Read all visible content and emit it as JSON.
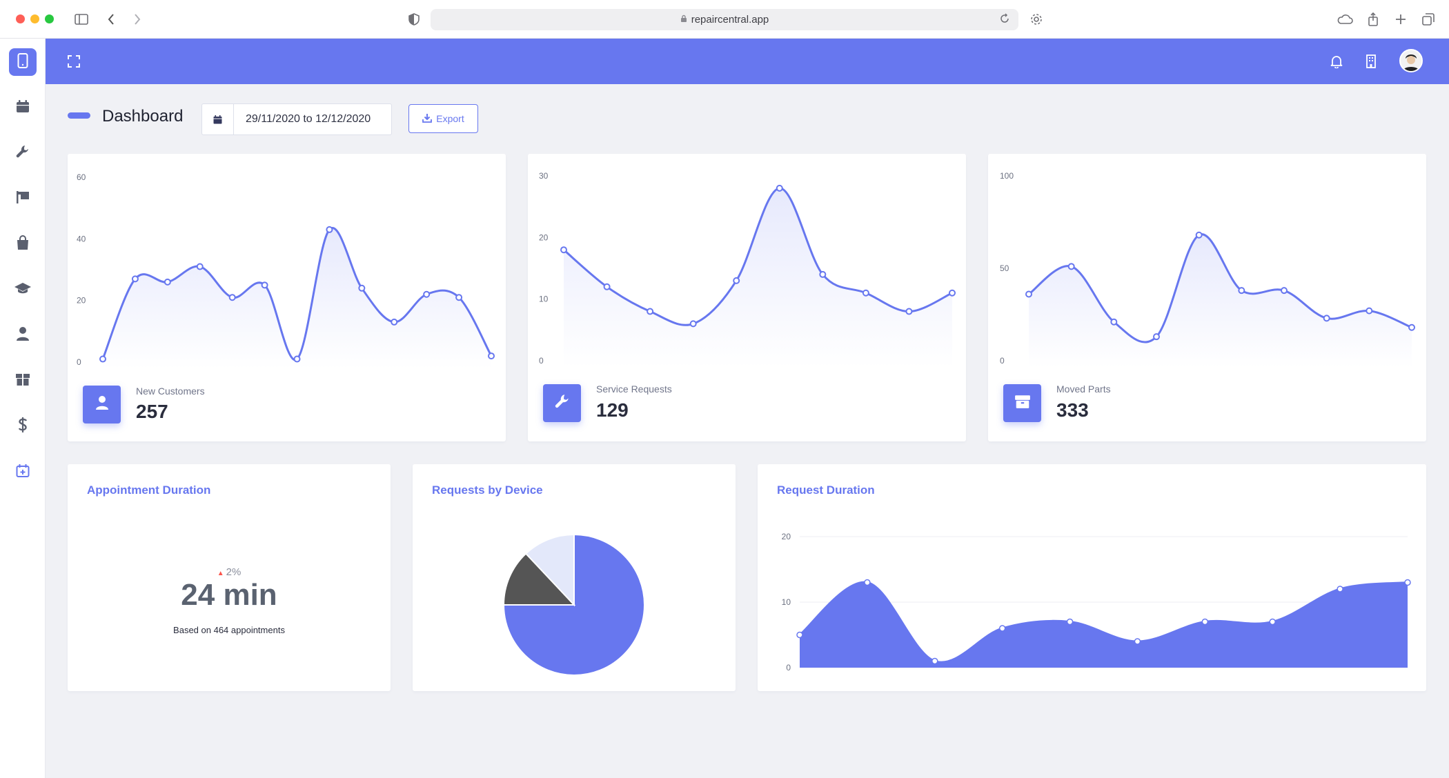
{
  "browser": {
    "url": "repaircentral.app"
  },
  "sidebar": {
    "items": [
      {
        "icon": "phone-icon",
        "name": "sidebar-item-devices",
        "active": true
      },
      {
        "icon": "calendar-icon",
        "name": "sidebar-item-calendar"
      },
      {
        "icon": "wrench-icon",
        "name": "sidebar-item-repairs"
      },
      {
        "icon": "flag-icon",
        "name": "sidebar-item-locations"
      },
      {
        "icon": "bag-icon",
        "name": "sidebar-item-shop"
      },
      {
        "icon": "graduation-cap-icon",
        "name": "sidebar-item-training"
      },
      {
        "icon": "user-icon",
        "name": "sidebar-item-users"
      },
      {
        "icon": "box-icon",
        "name": "sidebar-item-parts"
      },
      {
        "icon": "dollar-icon",
        "name": "sidebar-item-billing"
      },
      {
        "icon": "calendar-plus-icon",
        "name": "sidebar-item-new-appointment"
      }
    ]
  },
  "header": {
    "title": "Dashboard",
    "date_range": "29/11/2020 to 12/12/2020",
    "export_label": "Export"
  },
  "stats": [
    {
      "label": "New Customers",
      "value": "257",
      "icon": "user-icon"
    },
    {
      "label": "Service Requests",
      "value": "129",
      "icon": "wrench-icon"
    },
    {
      "label": "Moved Parts",
      "value": "333",
      "icon": "box-icon"
    }
  ],
  "appointment": {
    "title": "Appointment Duration",
    "change": "2%",
    "value": "24 min",
    "note": "Based on 464 appointments"
  },
  "requests_by_device": {
    "title": "Requests by Device"
  },
  "request_duration": {
    "title": "Request Duration"
  },
  "colors": {
    "primary": "#6777ef",
    "pie_dark": "#555555",
    "pie_light": "#e3e8fa",
    "change_up": "#fc544b"
  },
  "chart_data": [
    {
      "type": "area",
      "series_label": "New Customers",
      "x": [
        1,
        2,
        3,
        4,
        5,
        6,
        7,
        8,
        9,
        10,
        11,
        12,
        13
      ],
      "values": [
        1,
        27,
        26,
        31,
        21,
        25,
        1,
        43,
        24,
        13,
        22,
        21,
        2
      ],
      "ylim": [
        0,
        60
      ],
      "yticks": [
        0,
        20,
        40,
        60
      ]
    },
    {
      "type": "area",
      "series_label": "Service Requests",
      "x": [
        1,
        2,
        3,
        4,
        5,
        6,
        7,
        8,
        9,
        10
      ],
      "values": [
        18,
        12,
        8,
        6,
        13,
        28,
        14,
        11,
        8,
        11
      ],
      "ylim": [
        0,
        30
      ],
      "yticks": [
        0,
        10,
        20,
        30
      ]
    },
    {
      "type": "area",
      "series_label": "Moved Parts",
      "x": [
        1,
        2,
        3,
        4,
        5,
        6,
        7,
        8,
        9,
        10
      ],
      "values": [
        36,
        51,
        21,
        13,
        68,
        38,
        38,
        23,
        27,
        18
      ],
      "ylim": [
        0,
        100
      ],
      "yticks": [
        0,
        50,
        100
      ]
    },
    {
      "type": "pie",
      "title": "Requests by Device",
      "values": [
        75,
        13,
        12
      ],
      "colors": [
        "#6777ef",
        "#555555",
        "#e3e8fa"
      ]
    },
    {
      "type": "area",
      "title": "Request Duration",
      "x": [
        1,
        2,
        3,
        4,
        5,
        6,
        7,
        8,
        9,
        10
      ],
      "values": [
        5,
        13,
        1,
        6,
        7,
        4,
        7,
        7,
        12,
        13
      ],
      "ylim": [
        0,
        20
      ],
      "yticks": [
        0,
        10,
        20
      ]
    }
  ]
}
